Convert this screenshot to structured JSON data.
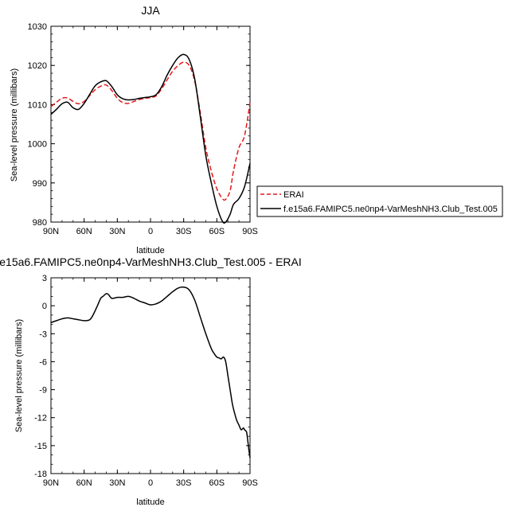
{
  "chart_data": [
    {
      "type": "line",
      "title": "JJA",
      "xlabel": "latitude",
      "ylabel": "Sea-level pressure (millibars)",
      "xlim": [
        -90,
        90
      ],
      "ylim": [
        980,
        1030
      ],
      "x_tick_values": [
        -90,
        -60,
        -30,
        0,
        30,
        60,
        90
      ],
      "x_tick_labels": [
        "90N",
        "60N",
        "30N",
        "0",
        "30S",
        "60S",
        "90S"
      ],
      "y_ticks": [
        980,
        990,
        1000,
        1010,
        1020,
        1030
      ],
      "grid": false,
      "legend_position": "right",
      "series": [
        {
          "name": "ERAI",
          "color": "#e31a1c",
          "style": "dashed",
          "x": [
            -90,
            -85,
            -80,
            -75,
            -70,
            -65,
            -60,
            -55,
            -50,
            -45,
            -40,
            -35,
            -30,
            -25,
            -20,
            -15,
            -10,
            -5,
            0,
            5,
            10,
            15,
            20,
            25,
            30,
            35,
            40,
            45,
            50,
            55,
            60,
            65,
            68,
            72,
            75,
            80,
            85,
            90
          ],
          "values": [
            1009.5,
            1010.6,
            1011.6,
            1011.7,
            1010.8,
            1010.2,
            1010.8,
            1012.3,
            1013.8,
            1014.7,
            1015.0,
            1013.6,
            1011.6,
            1010.5,
            1010.3,
            1010.8,
            1011.3,
            1011.6,
            1011.8,
            1012.2,
            1014.0,
            1016.3,
            1018.5,
            1020.0,
            1020.8,
            1020.0,
            1016.0,
            1008.0,
            999.0,
            993.0,
            988.5,
            986.0,
            985.8,
            988.0,
            993.0,
            999.0,
            1002.0,
            1010.5
          ]
        },
        {
          "name": "f.e15a6.FAMIPC5.ne0np4-VarMeshNH3.Club_Test.005",
          "color": "#000000",
          "style": "solid",
          "x": [
            -90,
            -85,
            -80,
            -75,
            -70,
            -65,
            -60,
            -55,
            -50,
            -45,
            -40,
            -35,
            -30,
            -25,
            -20,
            -15,
            -10,
            -5,
            0,
            5,
            10,
            15,
            20,
            25,
            30,
            35,
            40,
            45,
            50,
            55,
            60,
            65,
            68,
            72,
            75,
            80,
            85,
            90
          ],
          "values": [
            1007.5,
            1008.8,
            1010.2,
            1010.6,
            1009.2,
            1008.8,
            1010.3,
            1012.6,
            1014.8,
            1015.8,
            1016.1,
            1014.6,
            1012.5,
            1011.5,
            1011.2,
            1011.3,
            1011.6,
            1011.8,
            1012.0,
            1012.5,
            1014.5,
            1017.5,
            1020.0,
            1022.0,
            1022.8,
            1021.5,
            1016.5,
            1007.0,
            997.0,
            990.0,
            984.0,
            980.2,
            980.0,
            982.0,
            984.5,
            986.0,
            989.0,
            995.0
          ]
        }
      ]
    },
    {
      "type": "line",
      "title": "e15a6.FAMIPC5.ne0np4-VarMeshNH3.Club_Test.005 - ERAI",
      "xlabel": "latitude",
      "ylabel": "Sea-level pressure (millibars)",
      "xlim": [
        -90,
        90
      ],
      "ylim": [
        -18,
        3
      ],
      "x_tick_values": [
        -90,
        -60,
        -30,
        0,
        30,
        60,
        90
      ],
      "x_tick_labels": [
        "90N",
        "60N",
        "30N",
        "0",
        "30S",
        "60S",
        "90S"
      ],
      "y_ticks": [
        -18,
        -15,
        -12,
        -9,
        -6,
        -3,
        0,
        3
      ],
      "grid": false,
      "series": [
        {
          "color": "#000000",
          "style": "solid",
          "x": [
            -90,
            -85,
            -80,
            -75,
            -70,
            -65,
            -60,
            -55,
            -52,
            -48,
            -45,
            -43,
            -40,
            -38,
            -35,
            -30,
            -25,
            -20,
            -15,
            -10,
            -5,
            0,
            5,
            10,
            15,
            20,
            25,
            30,
            35,
            40,
            45,
            50,
            55,
            58,
            60,
            62,
            64,
            66,
            68,
            70,
            72,
            74,
            76,
            78,
            80,
            82,
            84,
            85,
            86,
            87,
            88,
            89,
            90
          ],
          "values": [
            -1.8,
            -1.6,
            -1.4,
            -1.3,
            -1.4,
            -1.5,
            -1.6,
            -1.5,
            -1.0,
            0.0,
            0.8,
            1.0,
            1.3,
            1.2,
            0.8,
            0.9,
            0.9,
            1.0,
            0.8,
            0.5,
            0.3,
            0.1,
            0.2,
            0.5,
            1.0,
            1.5,
            1.9,
            2.0,
            1.7,
            0.6,
            -1.2,
            -3.0,
            -4.6,
            -5.2,
            -5.5,
            -5.6,
            -5.7,
            -5.5,
            -6.0,
            -7.5,
            -9.0,
            -10.5,
            -11.5,
            -12.3,
            -12.8,
            -13.3,
            -13.1,
            -13.3,
            -13.4,
            -13.6,
            -14.5,
            -15.5,
            -16.3
          ]
        }
      ]
    }
  ]
}
